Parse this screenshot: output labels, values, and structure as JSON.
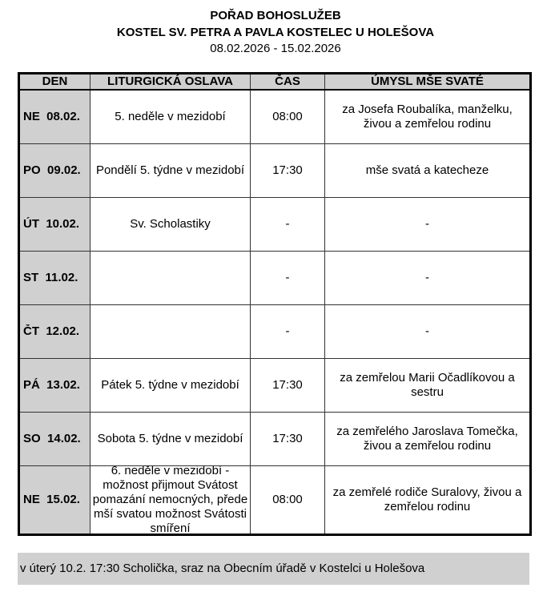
{
  "header": {
    "title": "POŘAD BOHOSLUŽEB",
    "subtitle": "KOSTEL SV. PETRA A PAVLA KOSTELEC U HOLEŠOVA",
    "date_range": "08.02.2026 - 15.02.2026"
  },
  "table": {
    "columns": [
      "DEN",
      "LITURGICKÁ OSLAVA",
      "ČAS",
      "ÚMYSL MŠE SVATÉ"
    ],
    "rows": [
      {
        "day": "NE  08.02.",
        "celebration": "5. neděle v mezidobí",
        "time": "08:00",
        "intention": "za Josefa Roubalíka, manželku, živou a zemřelou rodinu"
      },
      {
        "day": "PO  09.02.",
        "celebration": "Pondělí 5. týdne v mezidobí",
        "time": "17:30",
        "intention": "mše svatá a katecheze"
      },
      {
        "day": "ÚT  10.02.",
        "celebration": "Sv. Scholastiky",
        "time": "-",
        "intention": "-"
      },
      {
        "day": "ST  11.02.",
        "celebration": "",
        "time": "-",
        "intention": "-"
      },
      {
        "day": "ČT  12.02.",
        "celebration": "",
        "time": "-",
        "intention": "-"
      },
      {
        "day": "PÁ  13.02.",
        "celebration": "Pátek 5. týdne v mezidobí",
        "time": "17:30",
        "intention": "za zemřelou Marii Očadlíkovou a sestru"
      },
      {
        "day": "SO  14.02.",
        "celebration": "Sobota 5. týdne v mezidobí",
        "time": "17:30",
        "intention": "za zemřelého Jaroslava Tomečka, živou a zemřelou rodinu"
      },
      {
        "day": "NE  15.02.",
        "celebration": "6. neděle v mezidobí - možnost přijmout Svátost pomazání nemocných, přede mší svatou možnost Svátosti smíření",
        "time": "08:00",
        "intention": "za zemřelé rodiče Suralovy, živou a zemřelou rodinu"
      }
    ]
  },
  "note": "v úterý 10.2. 17:30 Scholička, sraz na Obecním úřadě v Kostelci u Holešova"
}
